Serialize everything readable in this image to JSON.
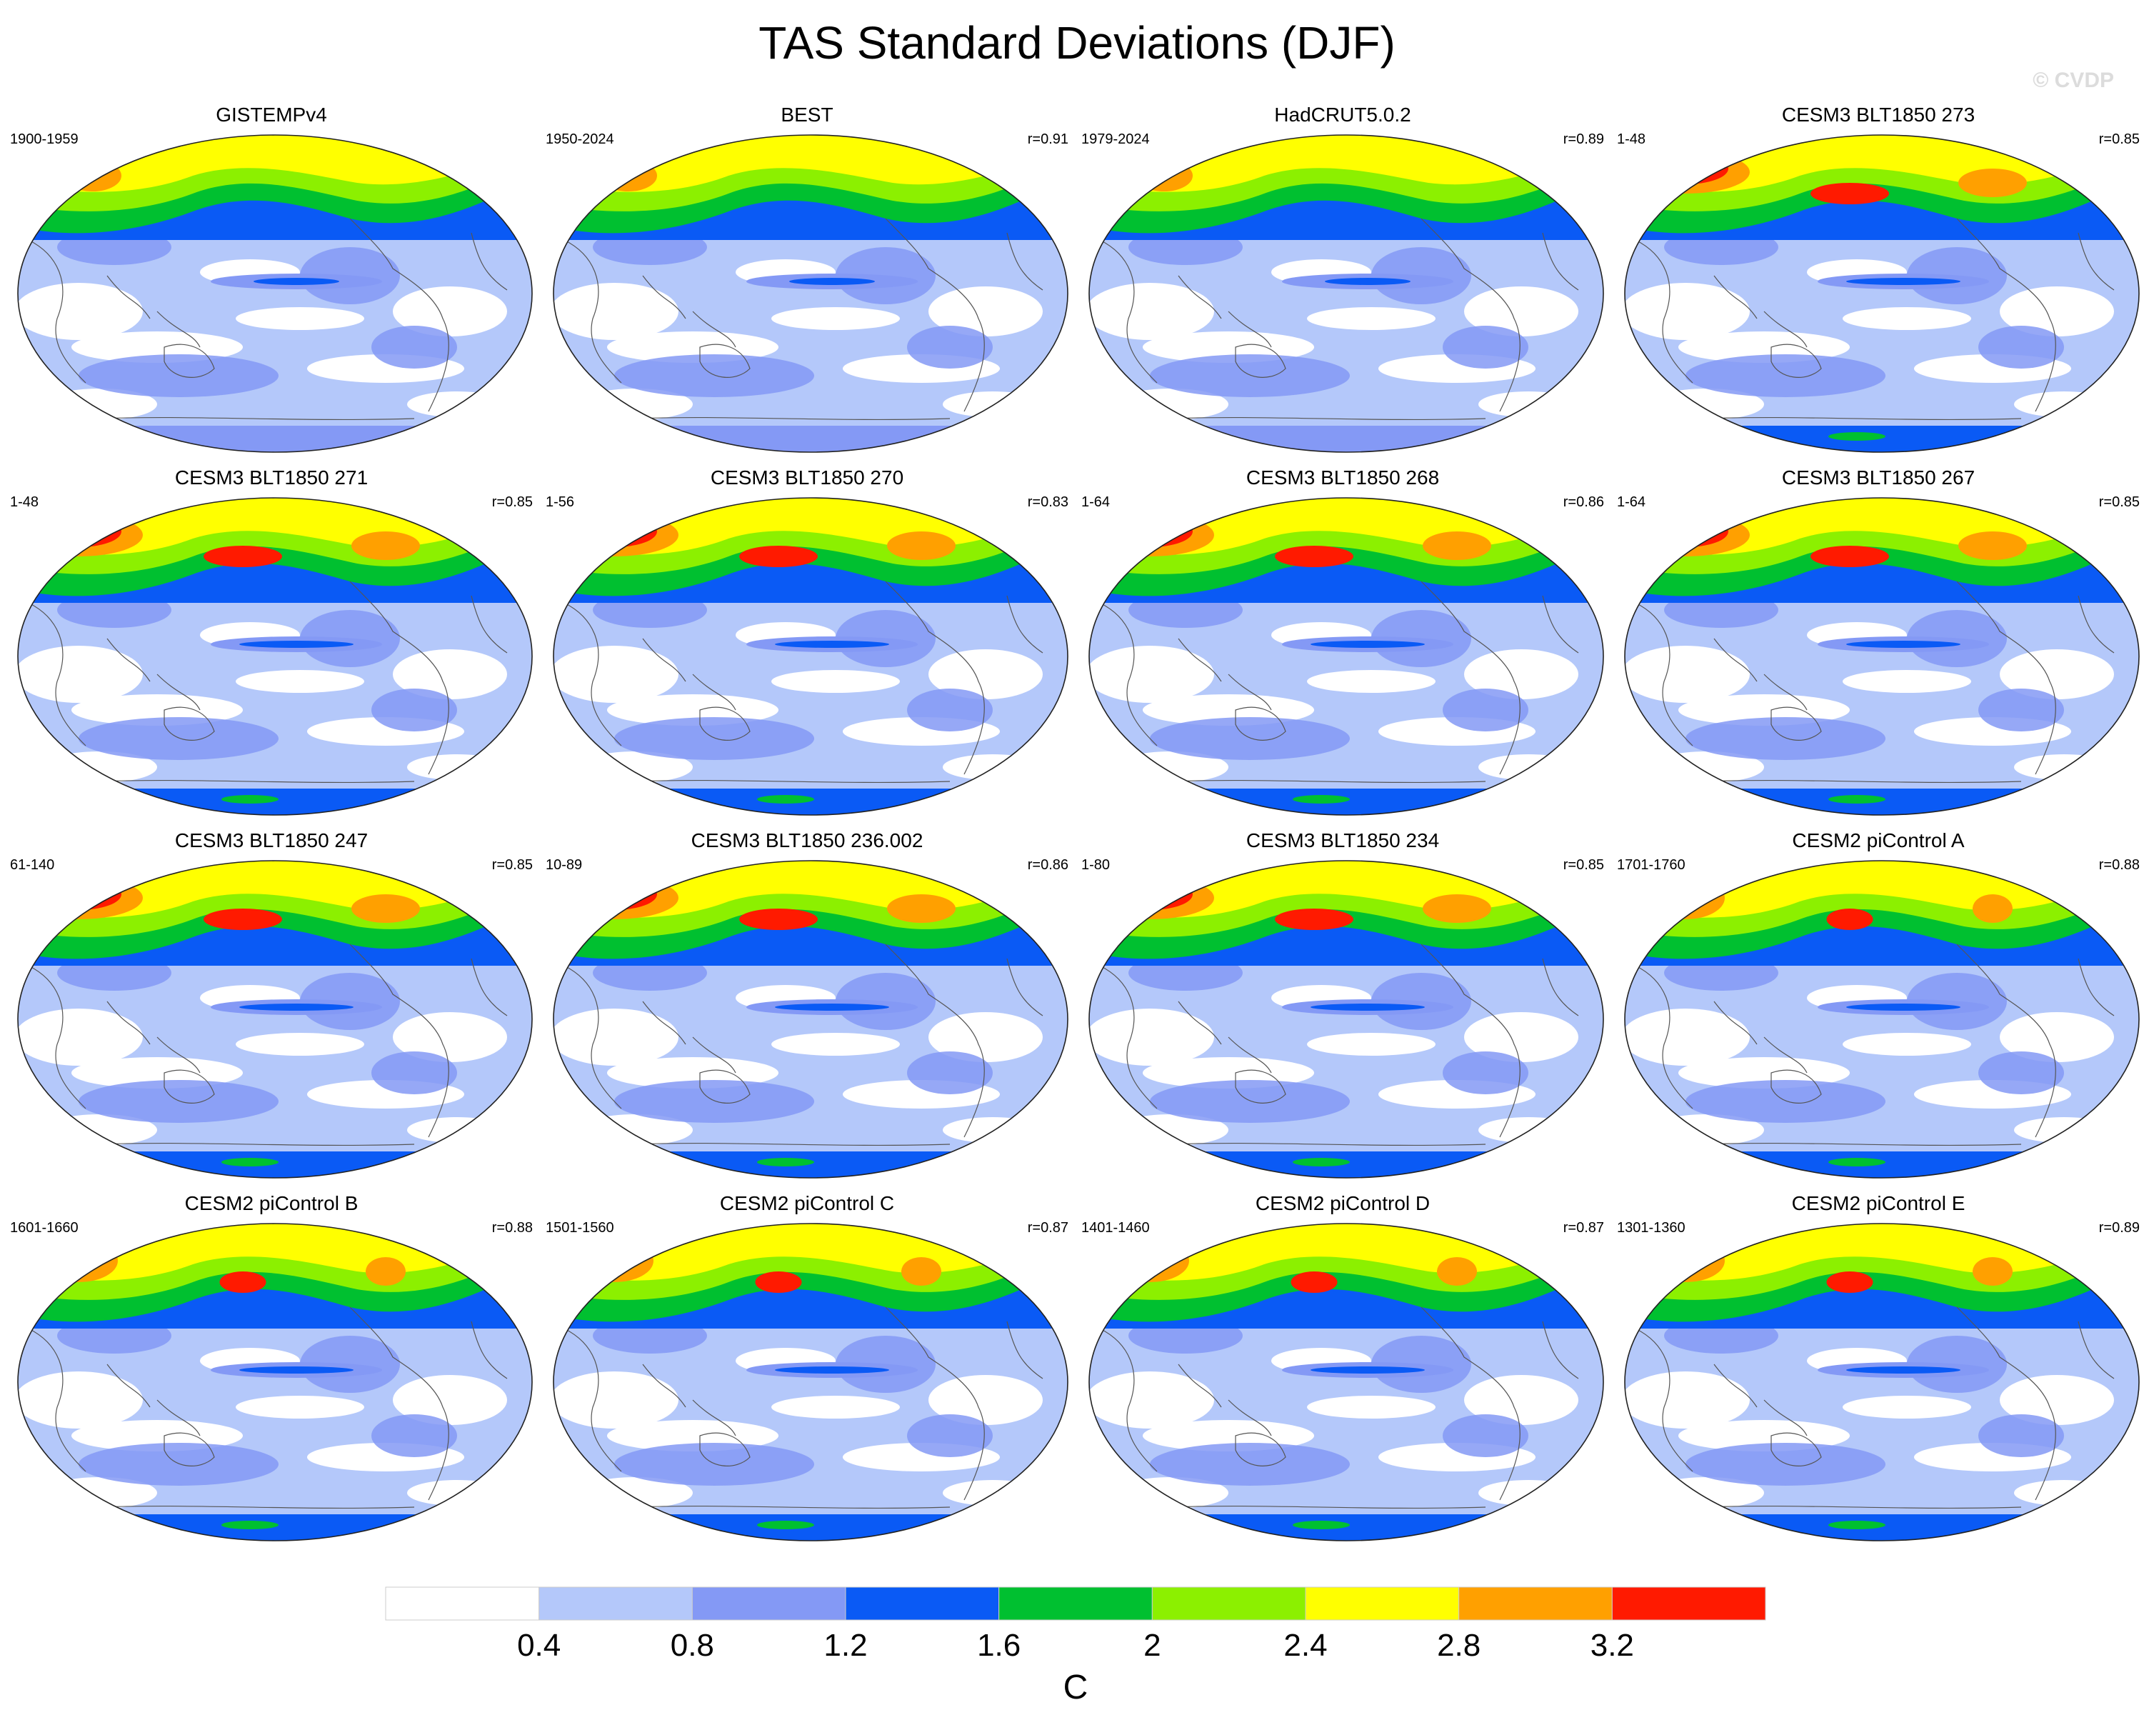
{
  "title": "TAS Standard Deviations (DJF)",
  "watermark": "© CVDP",
  "colorbar": {
    "colors": [
      "#ffffff",
      "#b4c8fa",
      "#8499f5",
      "#0a5af5",
      "#00c030",
      "#8cf000",
      "#ffff00",
      "#ffa000",
      "#ff1a00"
    ],
    "ticks": [
      "0.4",
      "0.8",
      "1.2",
      "1.6",
      "2",
      "2.4",
      "2.8",
      "3.2"
    ],
    "unit": "C"
  },
  "chart_data": {
    "type": "heatmap",
    "projection": "robinson",
    "levels": [
      0.4,
      0.8,
      1.2,
      1.6,
      2.0,
      2.4,
      2.8,
      3.2
    ],
    "panels": [
      {
        "name": "GISTEMPv4",
        "period": "1900-1959",
        "r": ""
      },
      {
        "name": "BEST",
        "period": "1950-2024",
        "r": "r=0.91"
      },
      {
        "name": "HadCRUT5.0.2",
        "period": "1979-2024",
        "r": "r=0.89"
      },
      {
        "name": "CESM3 BLT1850 273",
        "period": "1-48",
        "r": "r=0.85"
      },
      {
        "name": "CESM3 BLT1850 271",
        "period": "1-48",
        "r": "r=0.85"
      },
      {
        "name": "CESM3 BLT1850 270",
        "period": "1-56",
        "r": "r=0.83"
      },
      {
        "name": "CESM3 BLT1850 268",
        "period": "1-64",
        "r": "r=0.86"
      },
      {
        "name": "CESM3 BLT1850 267",
        "period": "1-64",
        "r": "r=0.85"
      },
      {
        "name": "CESM3 BLT1850 247",
        "period": "61-140",
        "r": "r=0.85"
      },
      {
        "name": "CESM3 BLT1850 236.002",
        "period": "10-89",
        "r": "r=0.86"
      },
      {
        "name": "CESM3 BLT1850 234",
        "period": "1-80",
        "r": "r=0.85"
      },
      {
        "name": "CESM2 piControl A",
        "period": "1701-1760",
        "r": "r=0.88"
      },
      {
        "name": "CESM2 piControl B",
        "period": "1601-1660",
        "r": "r=0.88"
      },
      {
        "name": "CESM2 piControl C",
        "period": "1501-1560",
        "r": "r=0.87"
      },
      {
        "name": "CESM2 piControl D",
        "period": "1401-1460",
        "r": "r=0.87"
      },
      {
        "name": "CESM2 piControl E",
        "period": "1301-1360",
        "r": "r=0.89"
      }
    ]
  }
}
